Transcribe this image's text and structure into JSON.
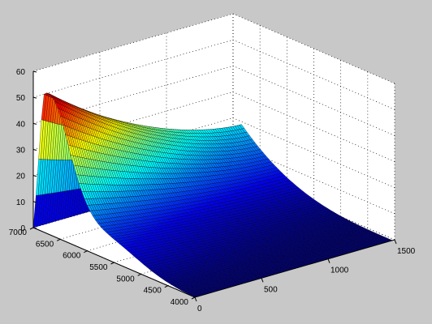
{
  "figure": {
    "background": "#c8c8c8",
    "axes_color": "#ffffff",
    "colormap": "jet"
  },
  "chart_data": {
    "type": "surface",
    "title": "",
    "xlabel": "",
    "ylabel": "",
    "zlabel": "",
    "x_axis": {
      "lim": [
        0,
        1500
      ],
      "ticks": [
        "0",
        "500",
        "1000",
        "1500"
      ]
    },
    "y_axis": {
      "lim": [
        4000,
        7000
      ],
      "ticks": [
        "4000",
        "4500",
        "5000",
        "5500",
        "6000",
        "6500",
        "7000"
      ]
    },
    "z_axis": {
      "lim": [
        0,
        60
      ],
      "ticks": [
        "0",
        "10",
        "20",
        "30",
        "40",
        "50",
        "60"
      ]
    },
    "grid": true,
    "surface_model": {
      "description": "values read from the rendered surface",
      "peak": {
        "x": 0,
        "y": 6700,
        "z": 57
      },
      "ridge_along_x": [
        {
          "x": 0,
          "y": 7000,
          "z": 2
        },
        {
          "x": 0,
          "y": 6700,
          "z": 57
        },
        {
          "x": 0,
          "y": 6000,
          "z": 40
        },
        {
          "x": 0,
          "y": 5000,
          "z": 18
        },
        {
          "x": 0,
          "y": 4000,
          "z": 0
        }
      ],
      "values_at_x_max": [
        {
          "x": 1500,
          "y": 7000,
          "z": 0
        },
        {
          "x": 1500,
          "y": 6500,
          "z": 24
        },
        {
          "x": 1500,
          "y": 5500,
          "z": 10
        },
        {
          "x": 1500,
          "y": 4000,
          "z": 0
        }
      ],
      "grid_size": {
        "nx": 90,
        "ny": 60
      }
    }
  }
}
